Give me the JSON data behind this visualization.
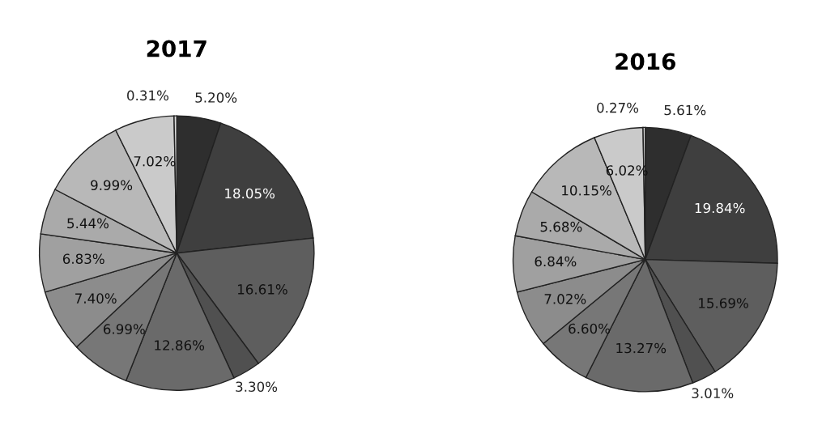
{
  "chart_data": [
    {
      "type": "pie",
      "title": "2017",
      "categories": [
        null,
        null,
        null,
        null,
        null,
        null,
        null,
        null,
        null,
        null,
        null,
        null
      ],
      "values": [
        5.2,
        18.05,
        16.61,
        3.3,
        12.86,
        6.99,
        7.4,
        6.83,
        5.44,
        9.99,
        7.02,
        0.31
      ],
      "value_labels": [
        "5.20%",
        "18.05%",
        "16.61%",
        "3.30%",
        "12.86%",
        "6.99%",
        "7.40%",
        "6.83%",
        "5.44%",
        "9.99%",
        "7.02%",
        "0.31%"
      ],
      "colors": [
        "#2e2e2e",
        "#3f3f3f",
        "#5e5e5e",
        "#505050",
        "#6a6a6a",
        "#777777",
        "#8c8c8c",
        "#a0a0a0",
        "#aaaaaa",
        "#b8b8b8",
        "#cacaca",
        "#dedede"
      ]
    },
    {
      "type": "pie",
      "title": "2016",
      "categories": [
        null,
        null,
        null,
        null,
        null,
        null,
        null,
        null,
        null,
        null,
        null,
        null
      ],
      "values": [
        5.61,
        19.84,
        15.69,
        3.01,
        13.27,
        6.6,
        7.02,
        6.84,
        5.68,
        10.15,
        6.02,
        0.27
      ],
      "value_labels": [
        "5.61%",
        "19.84%",
        "15.69%",
        "3.01%",
        "13.27%",
        "6.60%",
        "7.02%",
        "6.84%",
        "5.68%",
        "10.15%",
        "6.02%",
        "0.27%"
      ],
      "colors": [
        "#2e2e2e",
        "#3f3f3f",
        "#5e5e5e",
        "#505050",
        "#6a6a6a",
        "#777777",
        "#8c8c8c",
        "#a0a0a0",
        "#aaaaaa",
        "#b8b8b8",
        "#cacaca",
        "#dedede"
      ]
    }
  ]
}
